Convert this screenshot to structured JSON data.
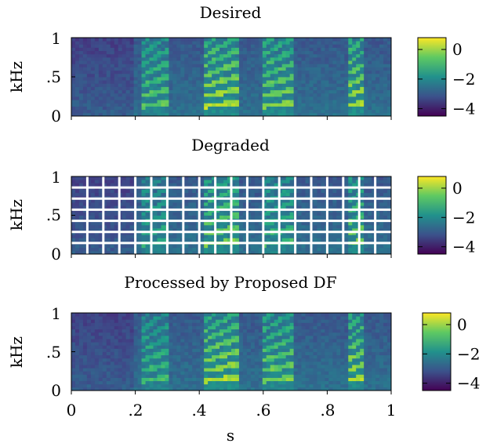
{
  "chart_data": [
    {
      "type": "heatmap",
      "title": "Desired",
      "ylabel": "kHz",
      "xlabel": "",
      "x_range": [
        0,
        1
      ],
      "y_range": [
        0,
        1
      ],
      "ytick_labels": [
        "0",
        ".5",
        "1"
      ],
      "xtick_labels": [],
      "colorbar": {
        "range": [
          -4.5,
          0.8
        ],
        "tick_values": [
          0,
          -2,
          -4
        ],
        "tick_labels": [
          "0",
          "−2",
          "−4"
        ],
        "colormap": "viridis"
      },
      "grid_overlay": false,
      "voiced_segments": [
        {
          "x": [
            0.22,
            0.3
          ],
          "strength": 0.75
        },
        {
          "x": [
            0.42,
            0.52
          ],
          "strength": 1.0
        },
        {
          "x": [
            0.6,
            0.7
          ],
          "strength": 0.9
        },
        {
          "x": [
            0.86,
            0.92
          ],
          "strength": 1.0
        }
      ]
    },
    {
      "type": "heatmap",
      "title": "Degraded",
      "ylabel": "kHz",
      "xlabel": "",
      "x_range": [
        0,
        1
      ],
      "y_range": [
        0,
        1
      ],
      "ytick_labels": [
        "0",
        ".5",
        "1"
      ],
      "xtick_labels": [],
      "colorbar": {
        "range": [
          -4.5,
          0.8
        ],
        "tick_values": [
          0,
          -2,
          -4
        ],
        "tick_labels": [
          "0",
          "−2",
          "−4"
        ],
        "colormap": "viridis"
      },
      "grid_overlay": true,
      "voiced_segments": [
        {
          "x": [
            0.22,
            0.3
          ],
          "strength": 0.55
        },
        {
          "x": [
            0.42,
            0.52
          ],
          "strength": 0.85
        },
        {
          "x": [
            0.6,
            0.7
          ],
          "strength": 0.65
        },
        {
          "x": [
            0.86,
            0.92
          ],
          "strength": 0.85
        }
      ]
    },
    {
      "type": "heatmap",
      "title": "Processed by Proposed DF",
      "ylabel": "kHz",
      "xlabel": "s",
      "x_range": [
        0,
        1
      ],
      "y_range": [
        0,
        1
      ],
      "ytick_labels": [
        "0",
        ".5",
        "1"
      ],
      "xtick_labels": [
        "0",
        ".2",
        ".4",
        ".6",
        ".8",
        "1"
      ],
      "colorbar": {
        "range": [
          -4.5,
          0.8
        ],
        "tick_values": [
          0,
          -2,
          -4
        ],
        "tick_labels": [
          "0",
          "−2",
          "−4"
        ],
        "colormap": "viridis"
      },
      "grid_overlay": false,
      "voiced_segments": [
        {
          "x": [
            0.22,
            0.3
          ],
          "strength": 0.65
        },
        {
          "x": [
            0.42,
            0.52
          ],
          "strength": 1.0
        },
        {
          "x": [
            0.6,
            0.7
          ],
          "strength": 0.85
        },
        {
          "x": [
            0.86,
            0.92
          ],
          "strength": 1.0
        }
      ]
    }
  ]
}
